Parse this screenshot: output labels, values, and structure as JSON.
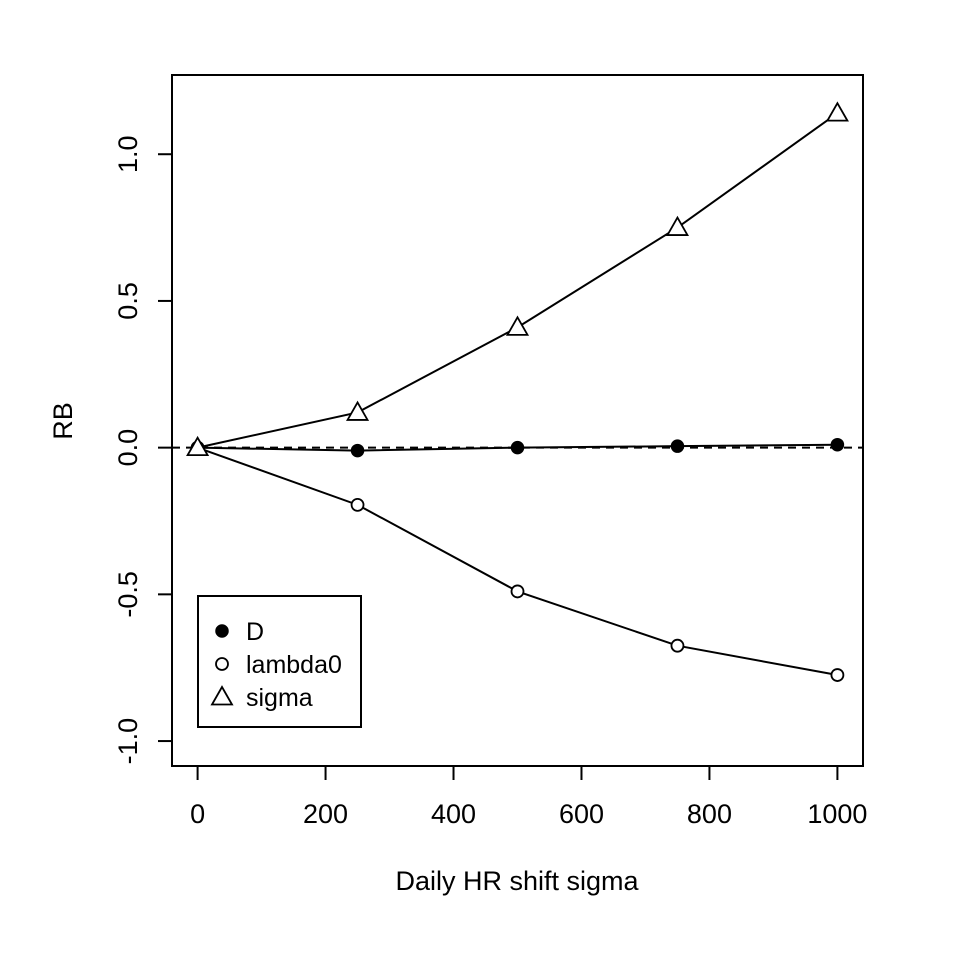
{
  "chart_data": {
    "type": "line",
    "xlabel": "Daily HR shift sigma",
    "ylabel": "RB",
    "x": [
      0,
      250,
      500,
      750,
      1000
    ],
    "xlim": [
      -40,
      1040
    ],
    "ylim": [
      -1.085,
      1.27
    ],
    "xticks": [
      0,
      200,
      400,
      600,
      800,
      1000
    ],
    "xtick_labels": [
      "0",
      "200",
      "400",
      "600",
      "800",
      "1000"
    ],
    "yticks": [
      -1.0,
      -0.5,
      0.0,
      0.5,
      1.0
    ],
    "ytick_labels": [
      "-1.0",
      "-0.5",
      "0.0",
      "0.5",
      "1.0"
    ],
    "reference_line": {
      "y": 0,
      "style": "dashed"
    },
    "grid": false,
    "legend_position": "bottom-left",
    "series": [
      {
        "name": "D",
        "marker": "filled-circle",
        "values": [
          0.0,
          -0.01,
          0.0,
          0.005,
          0.01
        ]
      },
      {
        "name": "lambda0",
        "marker": "open-circle",
        "values": [
          0.0,
          -0.195,
          -0.49,
          -0.675,
          -0.775
        ]
      },
      {
        "name": "sigma",
        "marker": "open-triangle",
        "values": [
          0.0,
          0.12,
          0.41,
          0.75,
          1.14
        ]
      }
    ]
  }
}
